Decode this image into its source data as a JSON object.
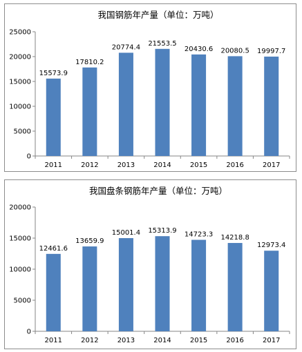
{
  "chart_data": [
    {
      "type": "bar",
      "title": "我国钢筋年产量（单位：万吨）",
      "categories": [
        "2011",
        "2012",
        "2013",
        "2014",
        "2015",
        "2016",
        "2017"
      ],
      "values": [
        15573.9,
        17810.2,
        20774.4,
        21553.5,
        20430.6,
        20080.5,
        19997.7
      ],
      "data_labels": [
        "15573.9",
        "17810.2",
        "20774.4",
        "21553.5",
        "20430.6",
        "20080.5",
        "19997.7"
      ],
      "ylim": [
        0,
        25000
      ],
      "yticks": [
        0,
        5000,
        10000,
        15000,
        20000,
        25000
      ],
      "ytick_labels": [
        "0",
        "5000",
        "10000",
        "15000",
        "20000",
        "25000"
      ],
      "grid": false,
      "legend": "none",
      "bar_color": "#4f81bd"
    },
    {
      "type": "bar",
      "title": "我国盘条钢筋年产量（单位：万吨）",
      "categories": [
        "2011",
        "2012",
        "2013",
        "2014",
        "2015",
        "2016",
        "2017"
      ],
      "values": [
        12461.6,
        13659.9,
        15001.4,
        15313.9,
        14723.3,
        14218.8,
        12973.4
      ],
      "data_labels": [
        "12461.6",
        "13659.9",
        "15001.4",
        "15313.9",
        "14723.3",
        "14218.8",
        "12973.4"
      ],
      "ylim": [
        0,
        20000
      ],
      "yticks": [
        0,
        5000,
        10000,
        15000,
        20000
      ],
      "ytick_labels": [
        "0",
        "5000",
        "10000",
        "15000",
        "20000"
      ],
      "grid": false,
      "legend": "none",
      "bar_color": "#4f81bd"
    }
  ]
}
